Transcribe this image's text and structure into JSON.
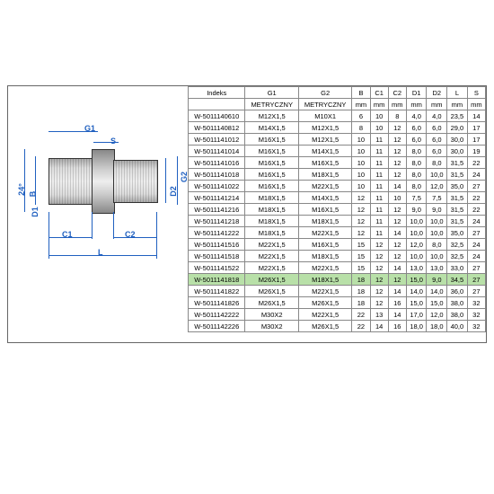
{
  "diagram": {
    "labels": {
      "angle": "24°",
      "G1": "G1",
      "G2": "G2",
      "B": "B",
      "D1": "D1",
      "D2": "D2",
      "S": "S",
      "C1": "C1",
      "C2": "C2",
      "L": "L"
    },
    "colors": {
      "dim": "#2060c0",
      "metal_light": "#eeeeee",
      "metal_dark": "#888888"
    }
  },
  "table": {
    "headers1": [
      "Indeks",
      "G1",
      "G2",
      "B",
      "C1",
      "C2",
      "D1",
      "D2",
      "L",
      "S"
    ],
    "headers2": [
      "",
      "METRYCZNY",
      "METRYCZNY",
      "mm",
      "mm",
      "mm",
      "mm",
      "mm",
      "mm",
      "mm"
    ],
    "highlight_index": 14,
    "highlight_color": "#b8e0a8",
    "rows": [
      [
        "W-5011140610",
        "M12X1,5",
        "M10X1",
        "6",
        "10",
        "8",
        "4,0",
        "4,0",
        "23,5",
        "14"
      ],
      [
        "W-5011140812",
        "M14X1,5",
        "M12X1,5",
        "8",
        "10",
        "12",
        "6,0",
        "6,0",
        "29,0",
        "17"
      ],
      [
        "W-5011141012",
        "M16X1,5",
        "M12X1,5",
        "10",
        "11",
        "12",
        "6,0",
        "6,0",
        "30,0",
        "17"
      ],
      [
        "W-5011141014",
        "M16X1,5",
        "M14X1,5",
        "10",
        "11",
        "12",
        "8,0",
        "6,0",
        "30,0",
        "19"
      ],
      [
        "W-5011141016",
        "M16X1,5",
        "M16X1,5",
        "10",
        "11",
        "12",
        "8,0",
        "8,0",
        "31,5",
        "22"
      ],
      [
        "W-5011141018",
        "M16X1,5",
        "M18X1,5",
        "10",
        "11",
        "12",
        "8,0",
        "10,0",
        "31,5",
        "24"
      ],
      [
        "W-5011141022",
        "M16X1,5",
        "M22X1,5",
        "10",
        "11",
        "14",
        "8,0",
        "12,0",
        "35,0",
        "27"
      ],
      [
        "W-5011141214",
        "M18X1,5",
        "M14X1,5",
        "12",
        "11",
        "10",
        "7,5",
        "7,5",
        "31,5",
        "22"
      ],
      [
        "W-5011141216",
        "M18X1,5",
        "M16X1,5",
        "12",
        "11",
        "12",
        "9,0",
        "9,0",
        "31,5",
        "22"
      ],
      [
        "W-5011141218",
        "M18X1,5",
        "M18X1,5",
        "12",
        "11",
        "12",
        "10,0",
        "10,0",
        "31,5",
        "24"
      ],
      [
        "W-5011141222",
        "M18X1,5",
        "M22X1,5",
        "12",
        "11",
        "14",
        "10,0",
        "10,0",
        "35,0",
        "27"
      ],
      [
        "W-5011141516",
        "M22X1,5",
        "M16X1,5",
        "15",
        "12",
        "12",
        "12,0",
        "8,0",
        "32,5",
        "24"
      ],
      [
        "W-5011141518",
        "M22X1,5",
        "M18X1,5",
        "15",
        "12",
        "12",
        "10,0",
        "10,0",
        "32,5",
        "24"
      ],
      [
        "W-5011141522",
        "M22X1,5",
        "M22X1,5",
        "15",
        "12",
        "14",
        "13,0",
        "13,0",
        "33,0",
        "27"
      ],
      [
        "W-5011141818",
        "M26X1,5",
        "M18X1,5",
        "18",
        "12",
        "12",
        "15,0",
        "9,0",
        "34,5",
        "27"
      ],
      [
        "W-5011141822",
        "M26X1,5",
        "M22X1,5",
        "18",
        "12",
        "14",
        "14,0",
        "14,0",
        "36,0",
        "27"
      ],
      [
        "W-5011141826",
        "M26X1,5",
        "M26X1,5",
        "18",
        "12",
        "16",
        "15,0",
        "15,0",
        "38,0",
        "32"
      ],
      [
        "W-5011142222",
        "M30X2",
        "M22X1,5",
        "22",
        "13",
        "14",
        "17,0",
        "12,0",
        "38,0",
        "32"
      ],
      [
        "W-5011142226",
        "M30X2",
        "M26X1,5",
        "22",
        "14",
        "16",
        "18,0",
        "18,0",
        "40,0",
        "32"
      ]
    ]
  }
}
